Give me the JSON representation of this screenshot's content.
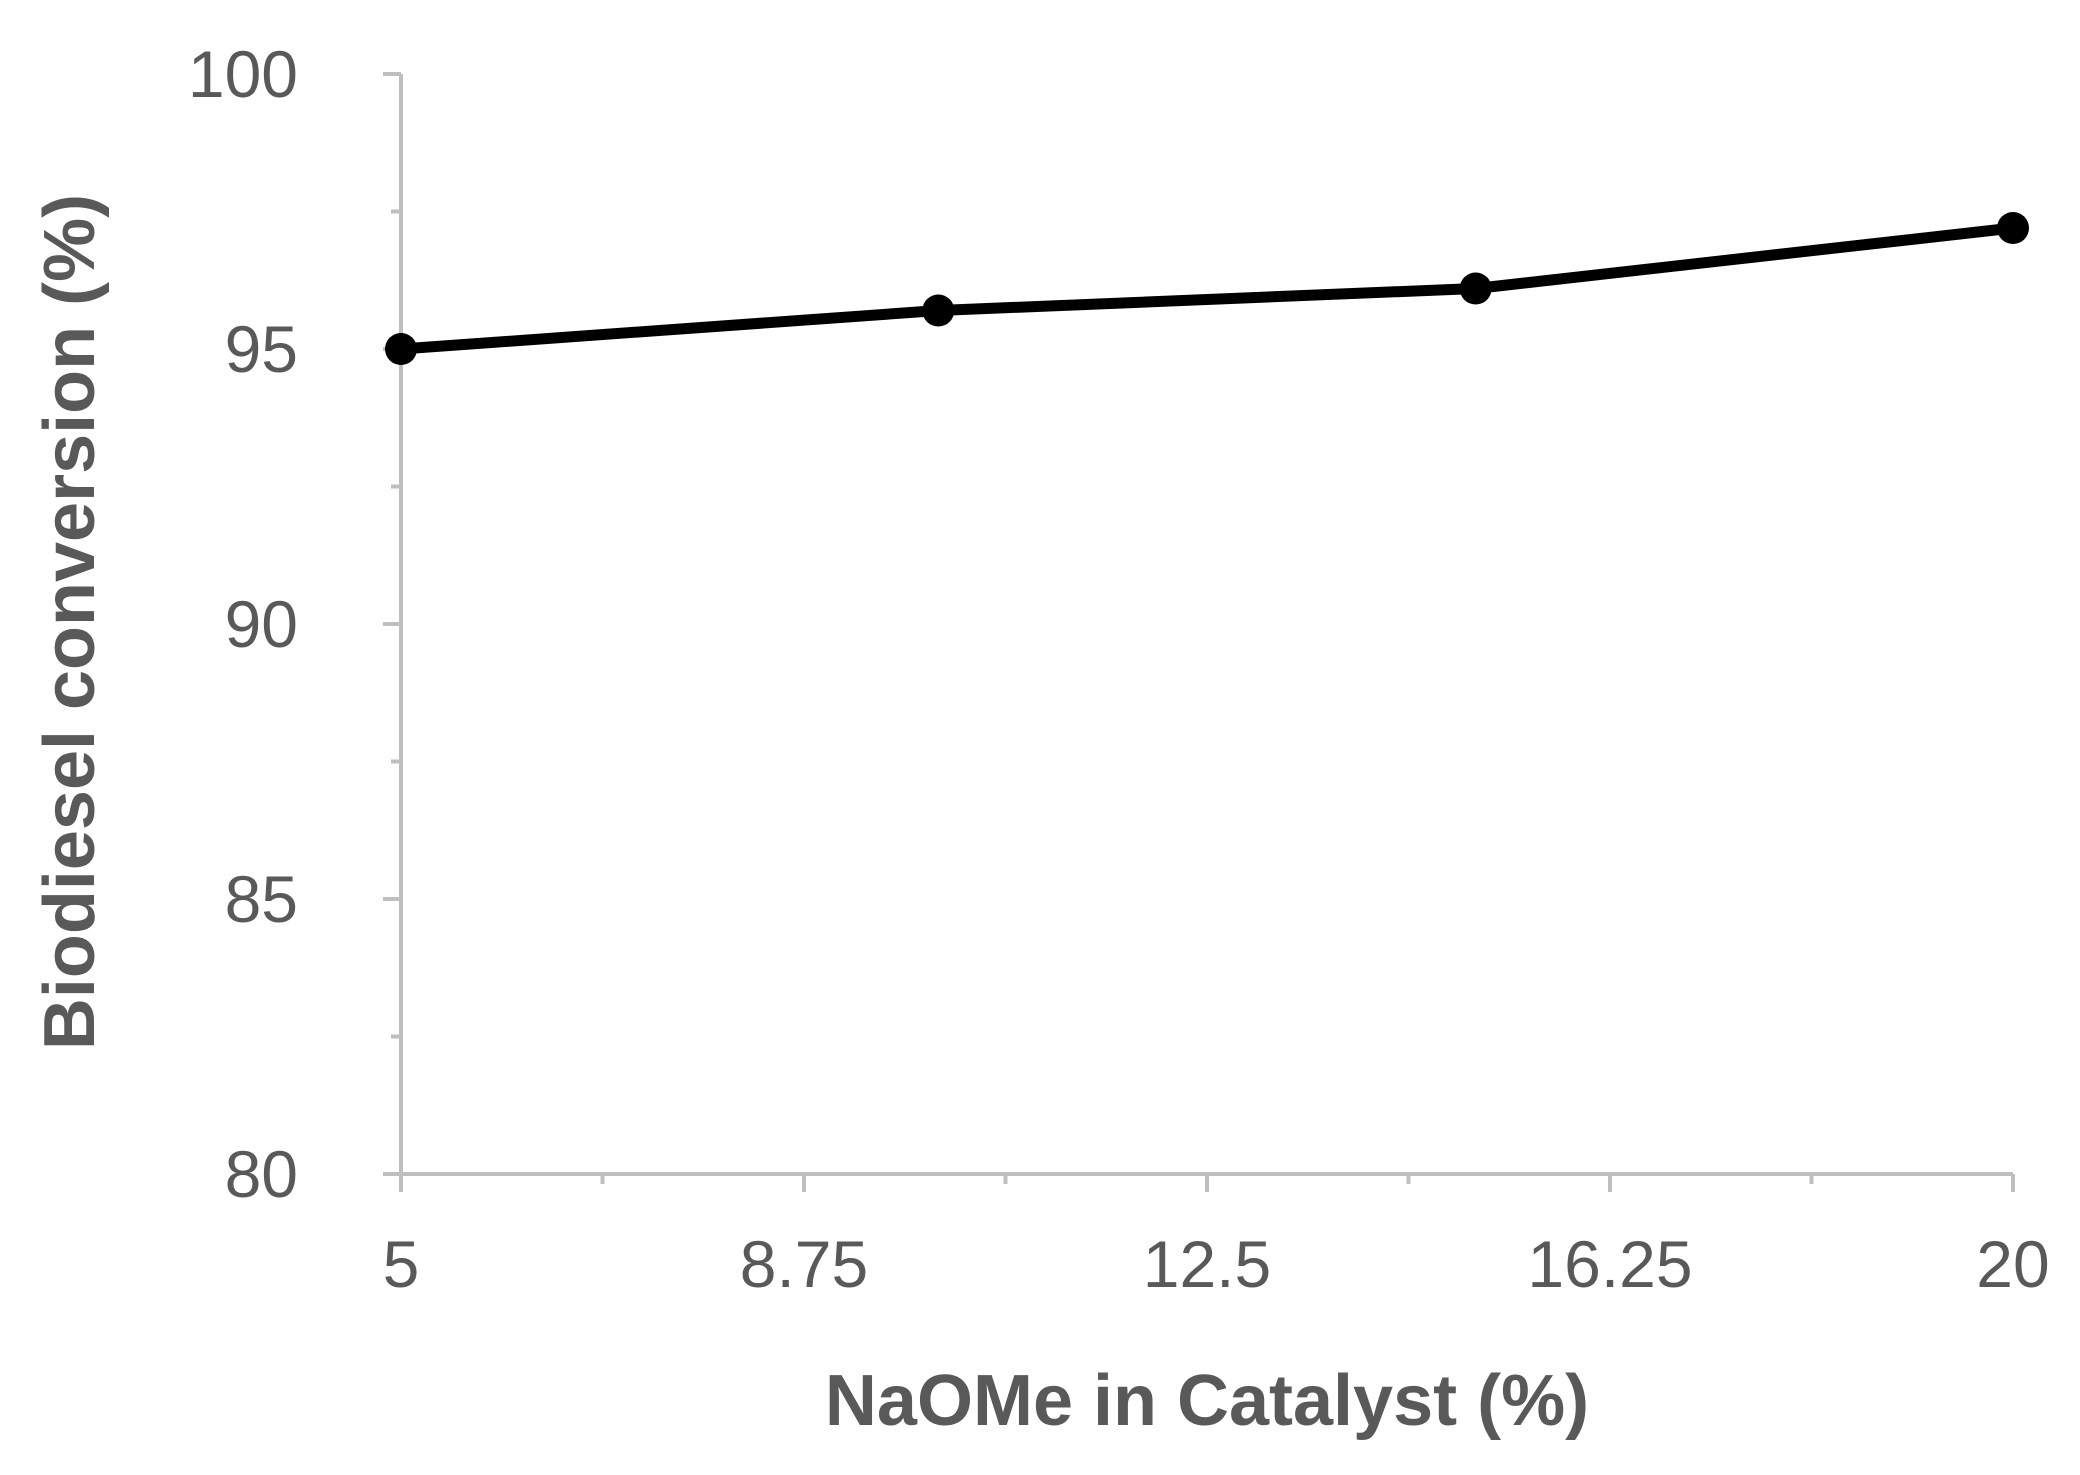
{
  "chart_data": {
    "type": "line",
    "title": "",
    "xlabel": "NaOMe in Catalyst (%)",
    "ylabel": "Biodiesel conversion (%)",
    "xlim": [
      5,
      20
    ],
    "ylim": [
      80,
      100
    ],
    "x_ticks": [
      "5",
      "8.75",
      "12.5",
      "16.25",
      "20"
    ],
    "y_ticks": [
      "80",
      "85",
      "90",
      "95",
      "100"
    ],
    "grid": false,
    "legend": "none",
    "series": [
      {
        "x": [
          5,
          10,
          15,
          20
        ],
        "y": [
          95.0,
          95.7,
          96.1,
          97.2
        ],
        "color": "#000000",
        "marker": "circle"
      }
    ],
    "axis_color": "#bfbfbf",
    "text_color": "#595959"
  }
}
